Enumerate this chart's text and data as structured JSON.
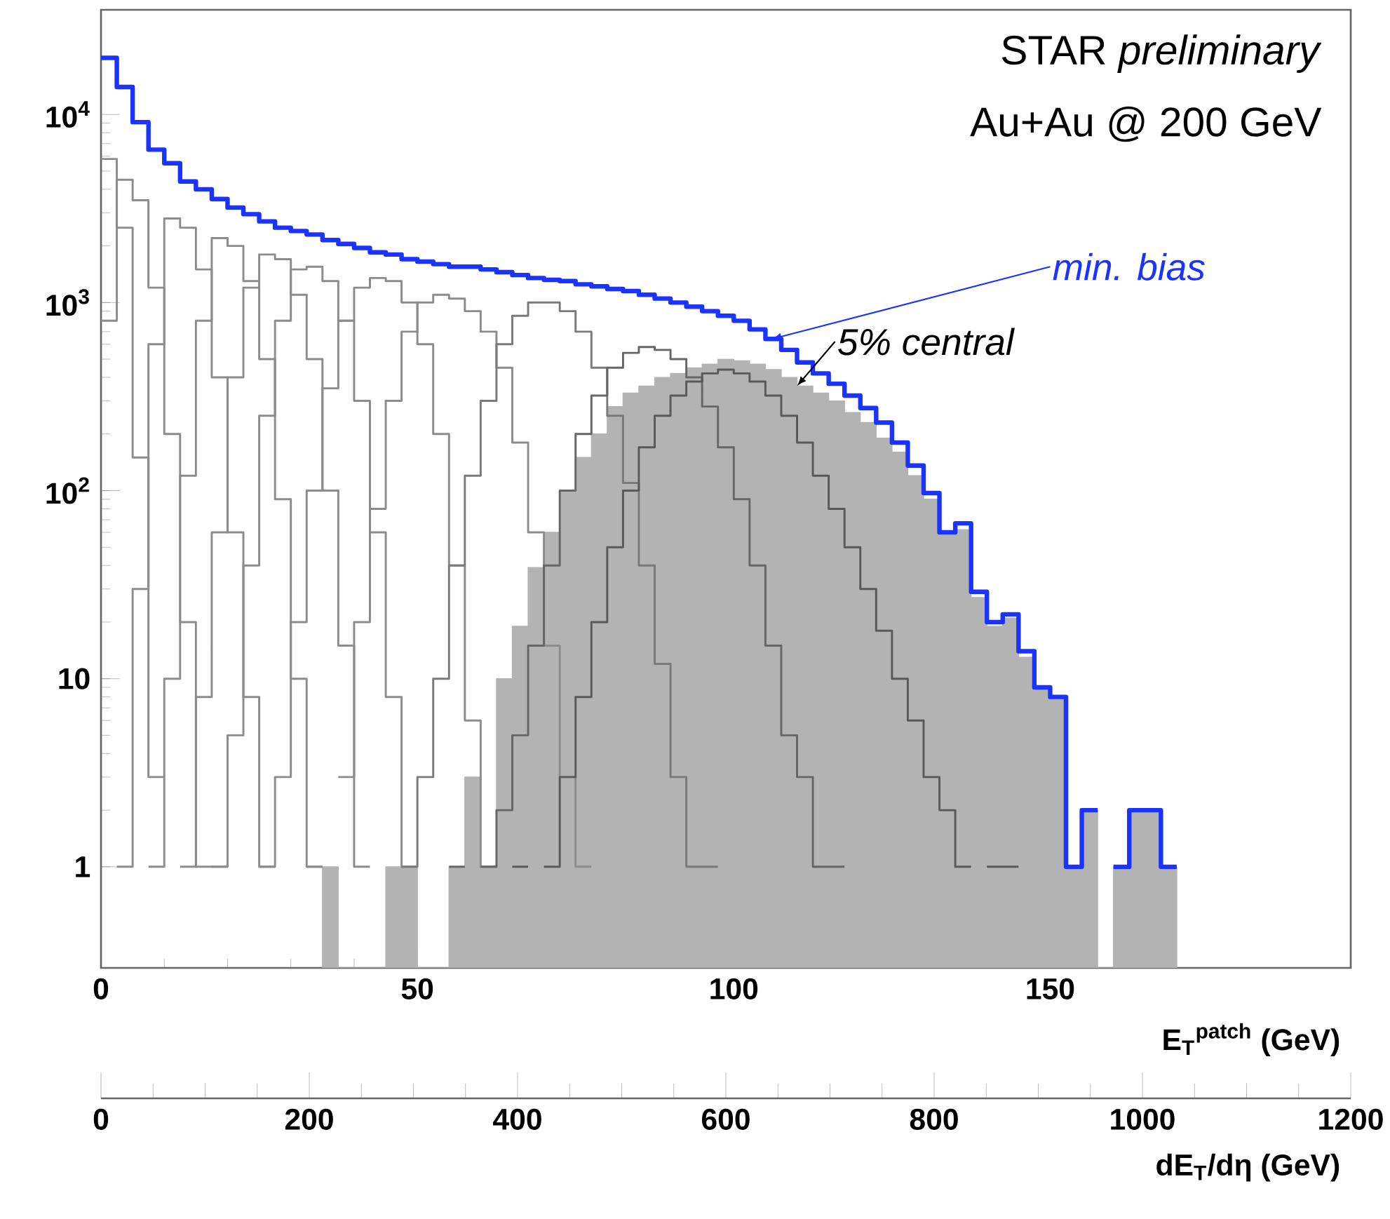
{
  "chart_data": {
    "type": "step",
    "xlabel": "E$_{T}$$^{patch}$ (GeV)",
    "x2label": "dE$_{T}$/dη (GeV)",
    "annotations": [
      "STAR *preliminary*",
      "Au+Au @ 200 GeV"
    ],
    "log": true,
    "xlim": [
      0,
      197.5
    ],
    "ylim": [
      0.29,
      36000
    ],
    "xticks": [
      0,
      50,
      100,
      150
    ],
    "yticks": [
      1,
      10,
      {
        "value": 100,
        "label": "10$^{2}$"
      },
      {
        "value": 1000,
        "label": "10$^{3}$"
      },
      {
        "value": 10000,
        "label": "10$^{4}$"
      }
    ],
    "x2lim": [
      0,
      1200
    ],
    "x2ticks": [
      0,
      200,
      400,
      600,
      800,
      1000,
      1200
    ],
    "series": [
      {
        "name": "min. bias",
        "color": "#1a33ff",
        "x": [
          0,
          2.5,
          5,
          7.5,
          10,
          12.5,
          15,
          17.5,
          20,
          22.5,
          25,
          27.5,
          30,
          32.5,
          35,
          37.5,
          40,
          42.5,
          45,
          47.5,
          50,
          52.5,
          55,
          57.5,
          60,
          62.5,
          65,
          67.5,
          70,
          72.5,
          75,
          77.5,
          80,
          82.5,
          85,
          87.5,
          90,
          92.5,
          95,
          97.5,
          100,
          102.5,
          105,
          107.5,
          110,
          112.5,
          115,
          117.5,
          120,
          122.5,
          125,
          127.5,
          130,
          132.5,
          135,
          137.5,
          140,
          142.5,
          145,
          147.5,
          150,
          152.5,
          155,
          157.5,
          160,
          162.5,
          165,
          167.5,
          170
        ],
        "values": [
          20000,
          14000,
          9100,
          6500,
          5500,
          4400,
          4000,
          3550,
          3200,
          2950,
          2700,
          2500,
          2400,
          2300,
          2150,
          2050,
          1950,
          1850,
          1800,
          1700,
          1650,
          1600,
          1550,
          1550,
          1500,
          1450,
          1400,
          1350,
          1320,
          1300,
          1250,
          1220,
          1180,
          1150,
          1100,
          1050,
          1000,
          950,
          900,
          850,
          800,
          720,
          640,
          560,
          480,
          420,
          370,
          320,
          275,
          230,
          180,
          136,
          97,
          60,
          67,
          29,
          20,
          22,
          14,
          9,
          8,
          1,
          2,
          null,
          1,
          2,
          2,
          1,
          1
        ]
      },
      {
        "name": "5% central",
        "type": "area",
        "color": "#b3b3b3",
        "x": [
          35,
          37.5,
          40,
          42.5,
          45,
          47.5,
          50,
          52.5,
          55,
          57.5,
          60,
          62.5,
          65,
          67.5,
          70,
          72.5,
          75,
          77.5,
          80,
          82.5,
          85,
          87.5,
          90,
          92.5,
          95,
          97.5,
          100,
          102.5,
          105,
          107.5,
          110,
          112.5,
          115,
          117.5,
          120,
          122.5,
          125,
          127.5,
          130,
          132.5,
          135,
          137.5,
          140,
          142.5,
          145,
          147.5,
          150,
          152.5,
          155,
          157.5,
          160,
          162.5,
          165,
          167.5,
          170
        ],
        "values": [
          1,
          null,
          null,
          null,
          1,
          1,
          null,
          null,
          1,
          3,
          1,
          10,
          19,
          39,
          60,
          100,
          150,
          200,
          280,
          330,
          360,
          400,
          420,
          450,
          470,
          500,
          490,
          470,
          440,
          400,
          360,
          330,
          300,
          260,
          230,
          190,
          160,
          120,
          90,
          58,
          62,
          27,
          19,
          21,
          13,
          9,
          8,
          1,
          2,
          null,
          1,
          2,
          2,
          1,
          1
        ]
      },
      {
        "color": "#8c8c8c",
        "x": [
          0,
          2.5,
          5,
          7.5,
          10
        ],
        "values": [
          5800,
          2500,
          150,
          3,
          3
        ]
      },
      {
        "color": "#8c8c8c",
        "x": [
          0,
          2.5,
          5,
          7.5,
          10,
          12.5,
          15,
          17.5,
          20
        ],
        "values": [
          800,
          4500,
          3500,
          1200,
          200,
          20,
          1,
          1,
          1
        ]
      },
      {
        "color": "#8c8c8c",
        "x": [
          2.5,
          5,
          7.5,
          10,
          12.5,
          15,
          17.5,
          20,
          22.5,
          25,
          27.5
        ],
        "values": [
          1,
          30,
          600,
          2800,
          2500,
          1500,
          400,
          60,
          8,
          1,
          1
        ]
      },
      {
        "color": "#8c8c8c",
        "x": [
          7.5,
          10,
          12.5,
          15,
          17.5,
          20,
          22.5,
          25,
          27.5,
          30,
          32.5,
          35
        ],
        "values": [
          1,
          10,
          120,
          800,
          2200,
          2000,
          1300,
          500,
          90,
          10,
          1,
          1
        ]
      },
      {
        "color": "#8c8c8c",
        "x": [
          12.5,
          15,
          17.5,
          20,
          22.5,
          25,
          27.5,
          30,
          32.5,
          35,
          37.5,
          40,
          42.5
        ],
        "values": [
          1,
          8,
          60,
          400,
          1200,
          1800,
          1700,
          1100,
          500,
          100,
          15,
          1,
          1
        ]
      },
      {
        "color": "#8c8c8c",
        "x": [
          17.5,
          20,
          22.5,
          25,
          27.5,
          30,
          32.5,
          35,
          37.5,
          40,
          42.5,
          45,
          47.5,
          50
        ],
        "values": [
          1,
          5,
          40,
          250,
          800,
          1500,
          1550,
          1300,
          800,
          300,
          60,
          8,
          1,
          1
        ]
      },
      {
        "color": "#8c8c8c",
        "x": [
          25,
          27.5,
          30,
          32.5,
          35,
          37.5,
          40,
          42.5,
          45,
          47.5,
          50,
          52.5,
          55,
          57.5,
          60,
          62.5
        ],
        "values": [
          1,
          3,
          20,
          100,
          350,
          800,
          1200,
          1350,
          1300,
          1000,
          600,
          200,
          40,
          6,
          1,
          1
        ]
      },
      {
        "color": "#8c8c8c",
        "x": [
          32.5,
          35,
          37.5,
          40,
          42.5,
          45,
          47.5,
          50,
          52.5,
          55,
          57.5,
          60,
          62.5,
          65,
          67.5,
          70,
          72.5,
          75,
          77.5
        ],
        "values": [
          1,
          null,
          3,
          20,
          80,
          300,
          700,
          1000,
          1100,
          1050,
          900,
          700,
          450,
          180,
          60,
          15,
          3,
          1,
          1
        ]
      },
      {
        "color": "#7a7a7a",
        "x": [
          47.5,
          50,
          52.5,
          55,
          57.5,
          60,
          62.5,
          65,
          67.5,
          70,
          72.5,
          75,
          77.5,
          80,
          82.5,
          85,
          87.5,
          90,
          92.5,
          95,
          97.5
        ],
        "values": [
          1,
          3,
          10,
          40,
          120,
          300,
          600,
          850,
          1000,
          1000,
          900,
          700,
          450,
          250,
          110,
          40,
          12,
          3,
          1,
          1,
          1
        ]
      },
      {
        "color": "#666666",
        "x": [
          55,
          57.5,
          60,
          62.5,
          65,
          67.5,
          70,
          72.5,
          75,
          77.5,
          80,
          82.5,
          85,
          87.5,
          90,
          92.5,
          95,
          97.5,
          100,
          102.5,
          105,
          107.5,
          110,
          112.5,
          115,
          117.5
        ],
        "values": [
          1,
          null,
          1,
          2,
          5,
          15,
          40,
          100,
          200,
          320,
          450,
          540,
          580,
          560,
          500,
          400,
          280,
          170,
          90,
          40,
          15,
          5,
          3,
          1,
          1,
          1
        ]
      },
      {
        "color": "#595959",
        "x": [
          65,
          67.5,
          70,
          72.5,
          75,
          77.5,
          80,
          82.5,
          85,
          87.5,
          90,
          92.5,
          95,
          97.5,
          100,
          102.5,
          105,
          107.5,
          110,
          112.5,
          115,
          117.5,
          120,
          122.5,
          125,
          127.5,
          130,
          132.5,
          135,
          137.5,
          140,
          142.5,
          145
        ],
        "values": [
          1,
          null,
          1,
          3,
          8,
          20,
          50,
          100,
          170,
          250,
          320,
          380,
          420,
          440,
          420,
          380,
          320,
          250,
          180,
          120,
          80,
          50,
          30,
          18,
          10,
          6,
          3,
          2,
          1,
          null,
          1,
          1,
          1
        ]
      }
    ]
  }
}
